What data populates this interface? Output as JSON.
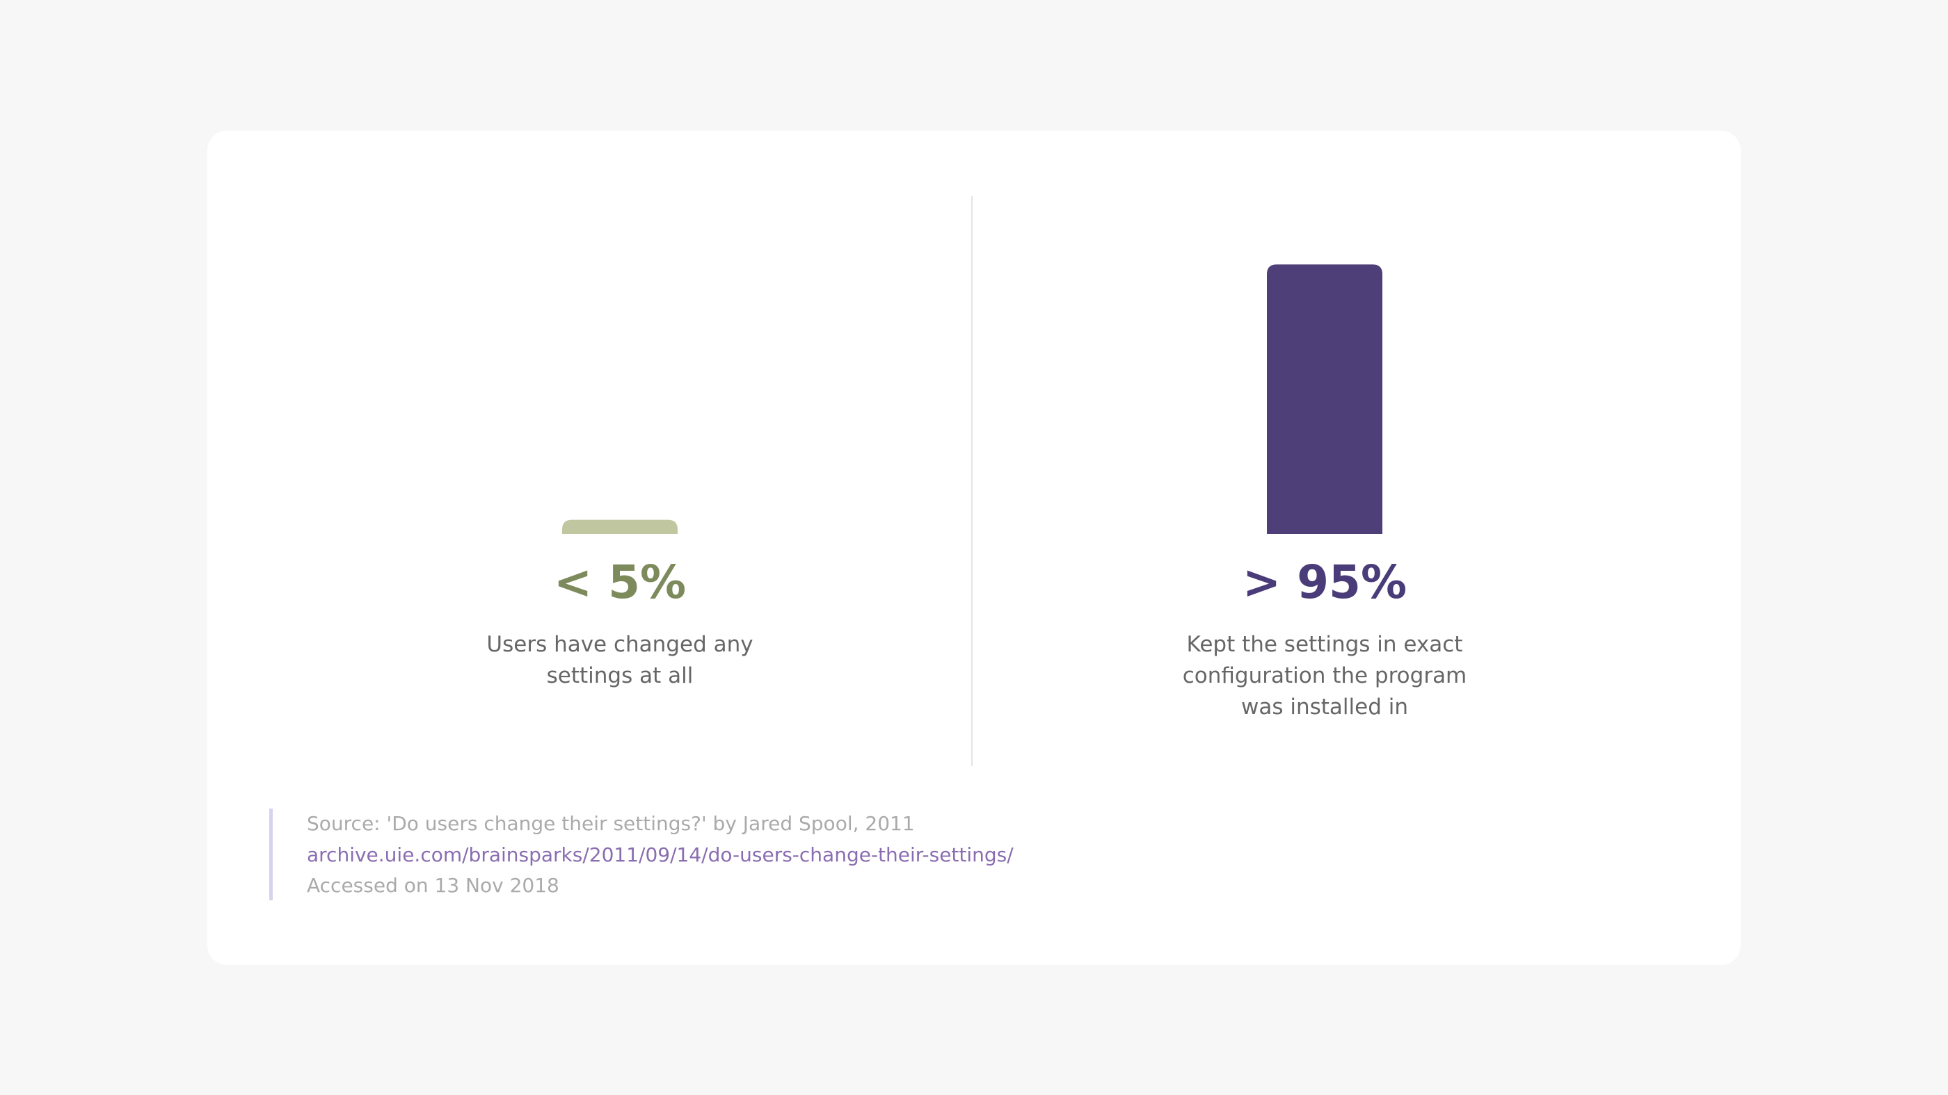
{
  "chart_data": {
    "type": "bar",
    "categories": [
      "Users have changed any settings at all",
      "Kept the settings in exact configuration the program was installed in"
    ],
    "values": [
      5,
      95
    ],
    "value_labels": [
      "< 5%",
      "> 95%"
    ],
    "colors": [
      "#c0c7a0",
      "#4e3f78"
    ],
    "label_colors": [
      "#7d8a5c",
      "#4a3c78"
    ],
    "ylim": [
      0,
      100
    ]
  },
  "source": {
    "citation": "Source: 'Do users change their settings?' by Jared Spool, 2011",
    "link": "archive.uie.com/brainsparks/2011/09/14/do-users-change-their-settings/",
    "accessed": "Accessed on 13 Nov 2018"
  }
}
